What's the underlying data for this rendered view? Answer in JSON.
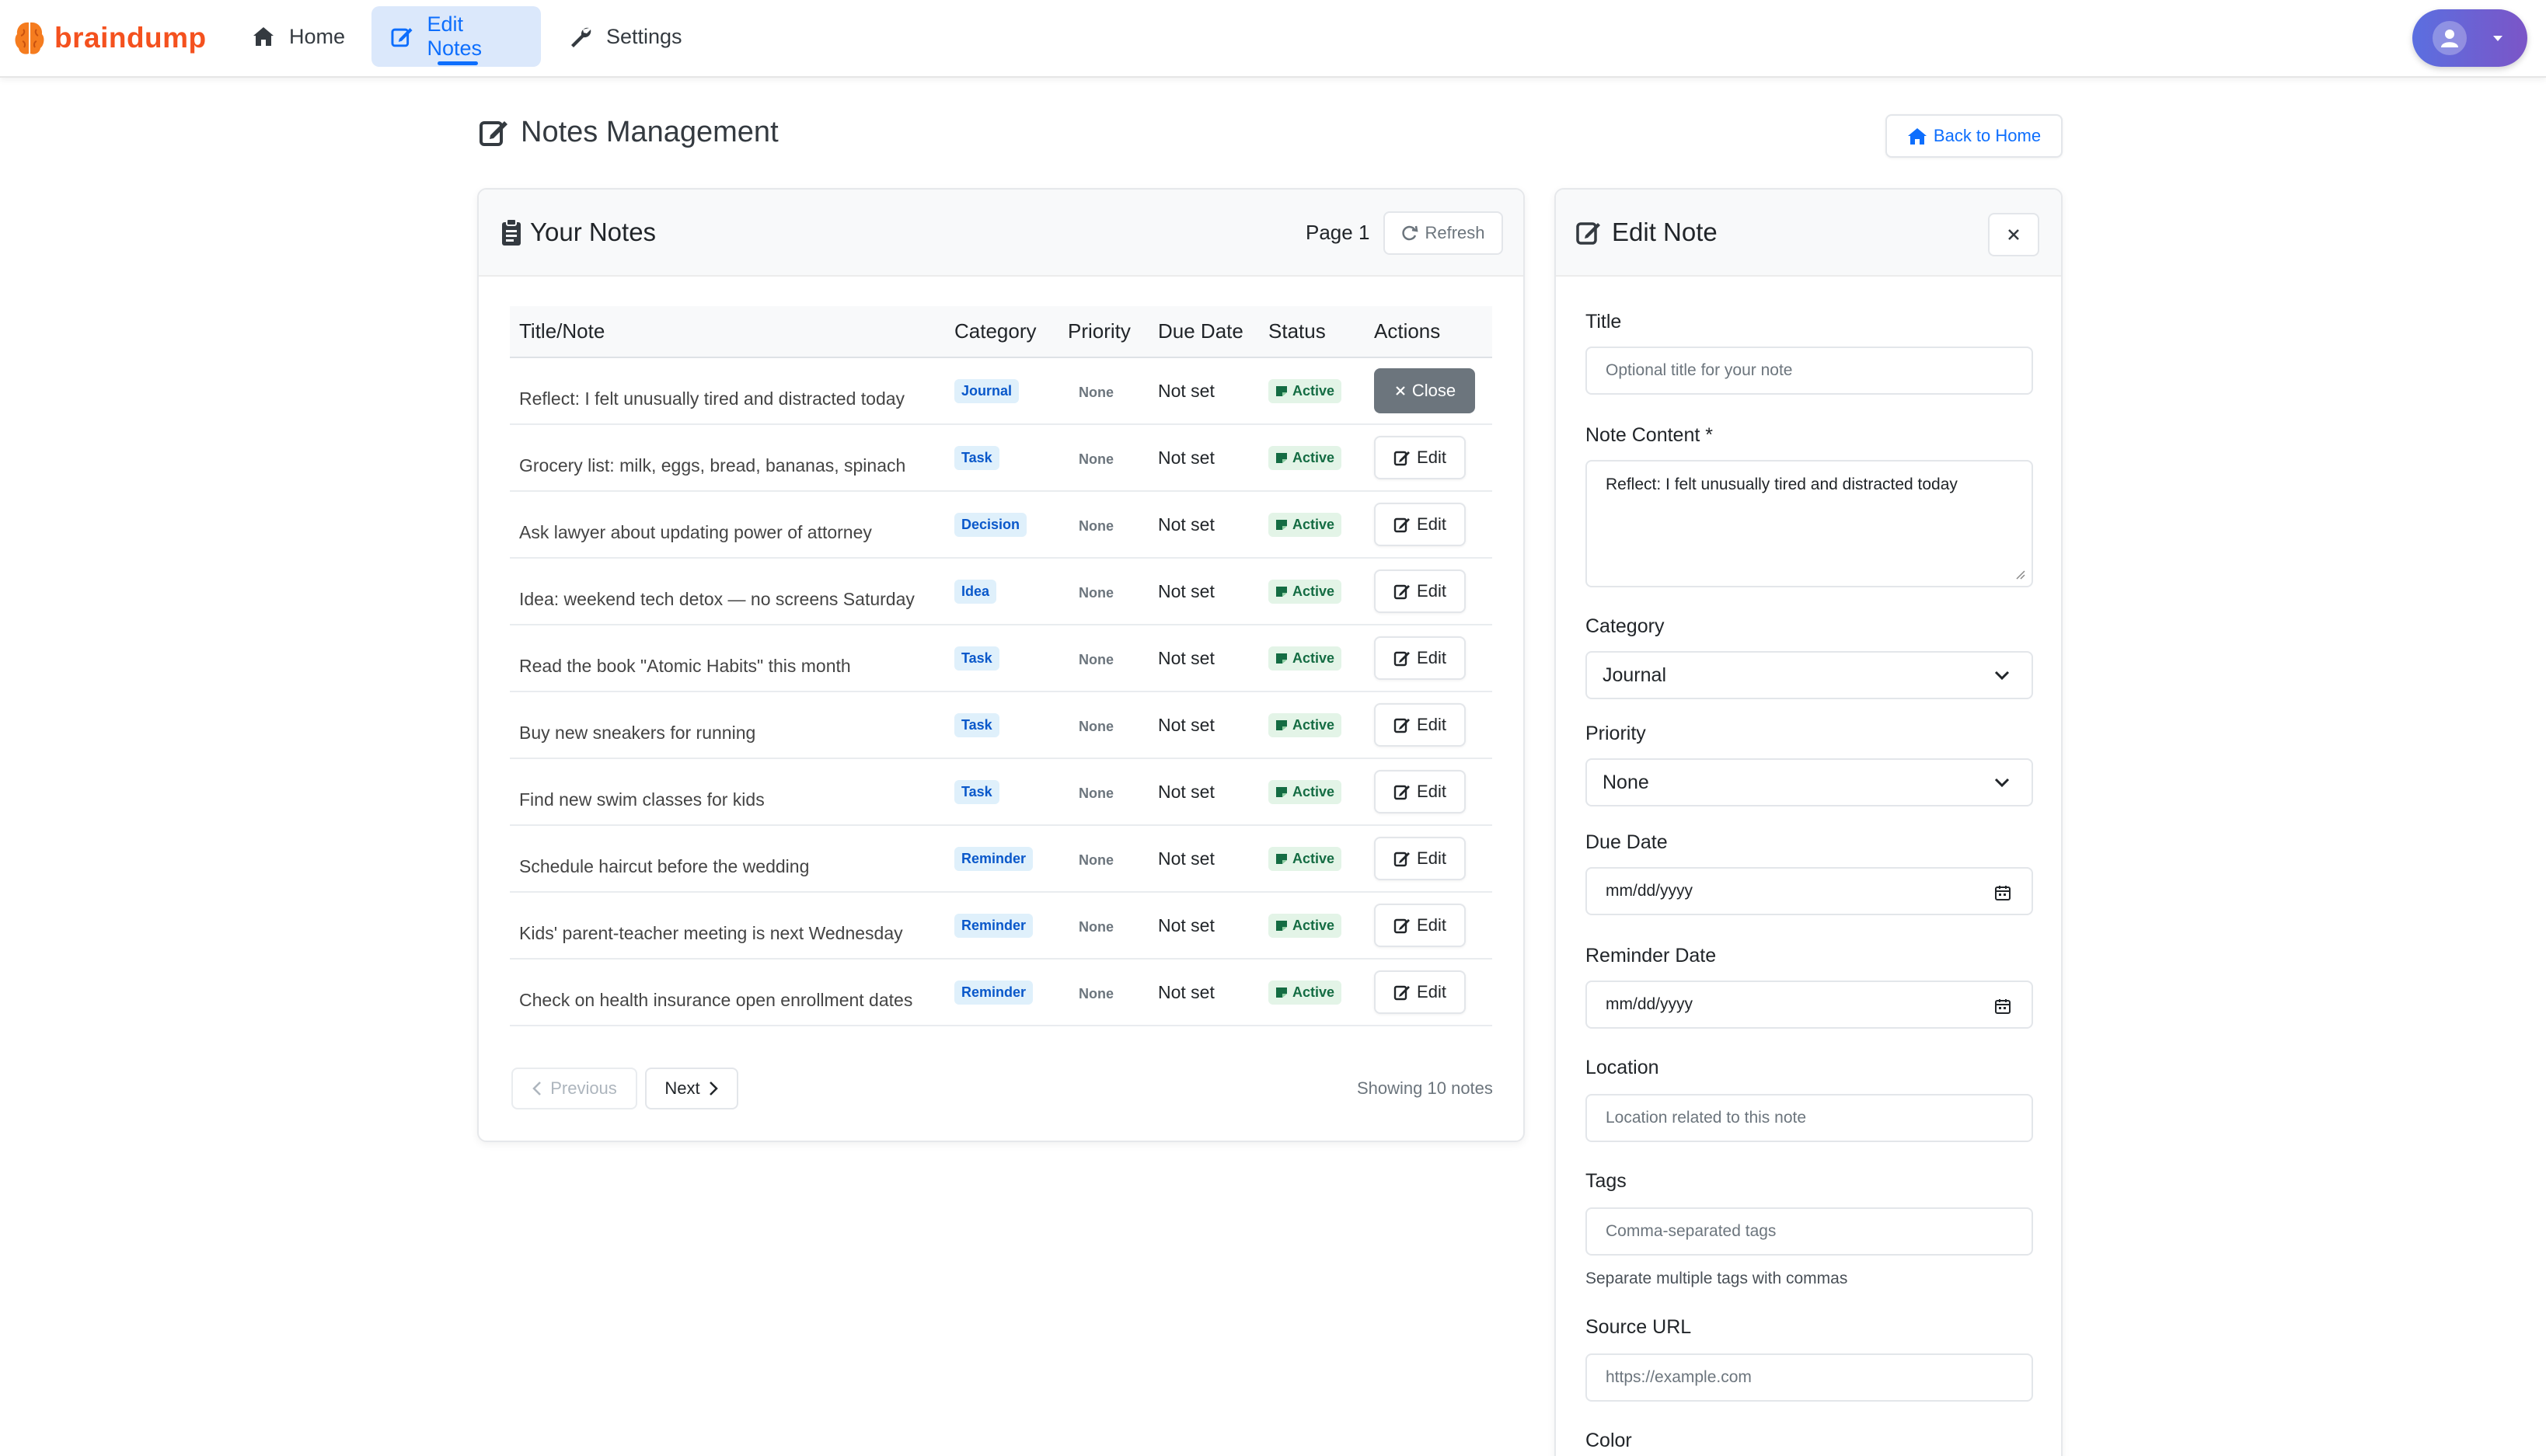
{
  "app": {
    "brand": "braindump"
  },
  "nav": {
    "home": "Home",
    "edit_notes": "Edit Notes",
    "settings": "Settings"
  },
  "page": {
    "title": "Notes Management",
    "back_home": "Back to Home"
  },
  "notes_card": {
    "title": "Your Notes",
    "page_label": "Page 1",
    "refresh": "Refresh",
    "columns": [
      "Title/Note",
      "Category",
      "Priority",
      "Due Date",
      "Status",
      "Actions"
    ],
    "rows": [
      {
        "title": "Reflect: I felt unusually tired and distracted today",
        "category": "Journal",
        "priority": "None",
        "due": "Not set",
        "status": "Active",
        "action": "Close"
      },
      {
        "title": "Grocery list: milk, eggs, bread, bananas, spinach",
        "category": "Task",
        "priority": "None",
        "due": "Not set",
        "status": "Active",
        "action": "Edit"
      },
      {
        "title": "Ask lawyer about updating power of attorney",
        "category": "Decision",
        "priority": "None",
        "due": "Not set",
        "status": "Active",
        "action": "Edit"
      },
      {
        "title": "Idea: weekend tech detox — no screens Saturday",
        "category": "Idea",
        "priority": "None",
        "due": "Not set",
        "status": "Active",
        "action": "Edit"
      },
      {
        "title": "Read the book \"Atomic Habits\" this month",
        "category": "Task",
        "priority": "None",
        "due": "Not set",
        "status": "Active",
        "action": "Edit"
      },
      {
        "title": "Buy new sneakers for running",
        "category": "Task",
        "priority": "None",
        "due": "Not set",
        "status": "Active",
        "action": "Edit"
      },
      {
        "title": "Find new swim classes for kids",
        "category": "Task",
        "priority": "None",
        "due": "Not set",
        "status": "Active",
        "action": "Edit"
      },
      {
        "title": "Schedule haircut before the wedding",
        "category": "Reminder",
        "priority": "None",
        "due": "Not set",
        "status": "Active",
        "action": "Edit"
      },
      {
        "title": "Kids' parent-teacher meeting is next Wednesday",
        "category": "Reminder",
        "priority": "None",
        "due": "Not set",
        "status": "Active",
        "action": "Edit"
      },
      {
        "title": "Check on health insurance open enrollment dates",
        "category": "Reminder",
        "priority": "None",
        "due": "Not set",
        "status": "Active",
        "action": "Edit"
      }
    ],
    "previous": "Previous",
    "next": "Next",
    "showing": "Showing 10 notes"
  },
  "edit_panel": {
    "title": "Edit Note",
    "fields": {
      "title_label": "Title",
      "title_placeholder": "Optional title for your note",
      "content_label": "Note Content *",
      "content_value": "Reflect: I felt unusually tired and distracted today",
      "category_label": "Category",
      "category_value": "Journal",
      "priority_label": "Priority",
      "priority_value": "None",
      "due_label": "Due Date",
      "due_placeholder": "mm/dd/yyyy",
      "reminder_label": "Reminder Date",
      "reminder_placeholder": "mm/dd/yyyy",
      "location_label": "Location",
      "location_placeholder": "Location related to this note",
      "tags_label": "Tags",
      "tags_placeholder": "Comma-separated tags",
      "tags_help": "Separate multiple tags with commas",
      "source_label": "Source URL",
      "source_placeholder": "https://example.com",
      "color_label": "Color"
    }
  },
  "colors": {
    "brand": "#f4511e",
    "primary": "#0d6efd",
    "active_badge_bg": "#e3f4e7",
    "category_badge_bg": "#dff0fb",
    "close_button": "#6c757d"
  }
}
